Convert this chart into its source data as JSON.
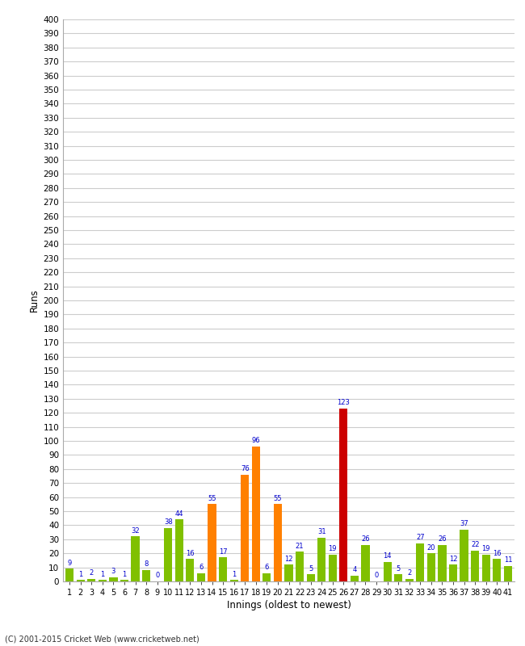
{
  "innings": [
    1,
    2,
    3,
    4,
    5,
    6,
    7,
    8,
    9,
    10,
    11,
    12,
    13,
    14,
    15,
    16,
    17,
    18,
    19,
    20,
    21,
    22,
    23,
    24,
    25,
    26,
    27,
    28,
    29,
    30,
    31,
    32,
    33,
    34,
    35,
    36,
    37,
    38,
    39,
    40,
    41
  ],
  "runs": [
    9,
    1,
    2,
    1,
    3,
    1,
    32,
    8,
    0,
    38,
    44,
    16,
    6,
    55,
    17,
    1,
    76,
    96,
    6,
    55,
    12,
    21,
    5,
    31,
    19,
    123,
    4,
    26,
    0,
    14,
    5,
    2,
    27,
    20,
    26,
    12,
    37,
    22,
    19,
    16,
    11
  ],
  "colors": [
    "#80c000",
    "#80c000",
    "#80c000",
    "#80c000",
    "#80c000",
    "#80c000",
    "#80c000",
    "#80c000",
    "#80c000",
    "#80c000",
    "#80c000",
    "#80c000",
    "#80c000",
    "#ff8000",
    "#80c000",
    "#80c000",
    "#ff8000",
    "#ff8000",
    "#80c000",
    "#ff8000",
    "#80c000",
    "#80c000",
    "#80c000",
    "#80c000",
    "#80c000",
    "#cc0000",
    "#80c000",
    "#80c000",
    "#80c000",
    "#80c000",
    "#80c000",
    "#80c000",
    "#80c000",
    "#80c000",
    "#80c000",
    "#80c000",
    "#80c000",
    "#80c000",
    "#80c000",
    "#80c000",
    "#80c000"
  ],
  "label_colors": [
    "#0000cc",
    "#0000cc",
    "#0000cc",
    "#0000cc",
    "#0000cc",
    "#0000cc",
    "#0000cc",
    "#0000cc",
    "#0000cc",
    "#0000cc",
    "#0000cc",
    "#0000cc",
    "#0000cc",
    "#0000cc",
    "#0000cc",
    "#0000cc",
    "#0000cc",
    "#0000cc",
    "#0000cc",
    "#0000cc",
    "#0000cc",
    "#0000cc",
    "#0000cc",
    "#0000cc",
    "#0000cc",
    "#0000cc",
    "#0000cc",
    "#0000cc",
    "#0000cc",
    "#0000cc",
    "#0000cc",
    "#0000cc",
    "#0000cc",
    "#0000cc",
    "#0000cc",
    "#0000cc",
    "#0000cc",
    "#0000cc",
    "#0000cc",
    "#0000cc",
    "#0000cc"
  ],
  "xlabel": "Innings (oldest to newest)",
  "ylabel": "Runs",
  "ylim": [
    0,
    400
  ],
  "yticks": [
    0,
    10,
    20,
    30,
    40,
    50,
    60,
    70,
    80,
    90,
    100,
    110,
    120,
    130,
    140,
    150,
    160,
    170,
    180,
    190,
    200,
    210,
    220,
    230,
    240,
    250,
    260,
    270,
    280,
    290,
    300,
    310,
    320,
    330,
    340,
    350,
    360,
    370,
    380,
    390,
    400
  ],
  "background_color": "#ffffff",
  "grid_color": "#cccccc",
  "footer": "(C) 2001-2015 Cricket Web (www.cricketweb.net)"
}
